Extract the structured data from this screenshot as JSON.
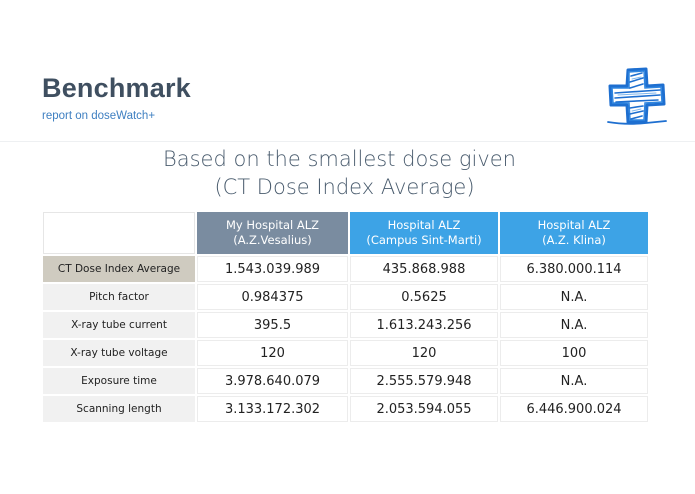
{
  "header": {
    "title": "Benchmark",
    "subtitle": "report on doseWatch+",
    "logo_icon": "medical-cross-icon",
    "logo_color": "#1e6fd0"
  },
  "heading": {
    "line1": "Based on the smallest dose given",
    "line2": "(CT Dose Index Average)"
  },
  "table": {
    "columns": [
      {
        "line1": "My Hospital ALZ",
        "line2": "(A.Z.Vesalius)",
        "color": "#7a8ca0"
      },
      {
        "line1": "Hospital ALZ",
        "line2": "(Campus Sint-Marti)",
        "color": "#3da3e6"
      },
      {
        "line1": "Hospital ALZ",
        "line2": "(A.Z. Klina)",
        "color": "#3da3e6"
      }
    ],
    "rows": [
      {
        "label": "CT Dose Index Average",
        "values": [
          "1.543.039.989",
          "435.868.988",
          "6.380.000.114"
        ]
      },
      {
        "label": "Pitch factor",
        "values": [
          "0.984375",
          "0.5625",
          "N.A."
        ]
      },
      {
        "label": "X-ray tube current",
        "values": [
          "395.5",
          "1.613.243.256",
          "N.A."
        ]
      },
      {
        "label": "X-ray tube voltage",
        "values": [
          "120",
          "120",
          "100"
        ]
      },
      {
        "label": "Exposure time",
        "values": [
          "3.978.640.079",
          "2.555.579.948",
          "N.A."
        ]
      },
      {
        "label": "Scanning length",
        "values": [
          "3.133.172.302",
          "2.053.594.055",
          "6.446.900.024"
        ]
      }
    ]
  }
}
